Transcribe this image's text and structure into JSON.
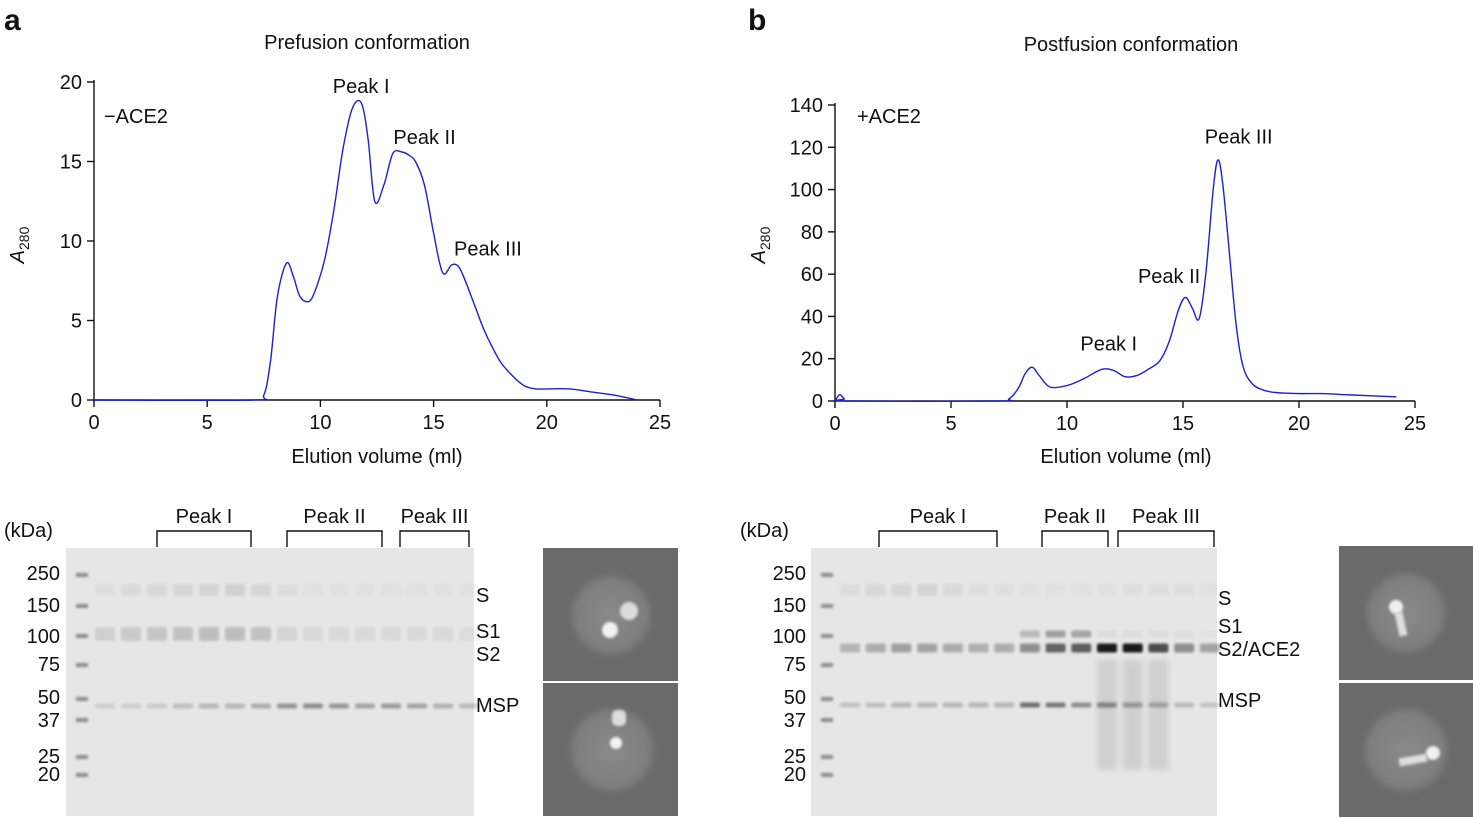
{
  "panels": [
    {
      "letter": "a",
      "title": "Prefusion conformation",
      "condition": "−ACE2",
      "gel_lanes": 15,
      "gel_markers": [
        {
          "label": "S"
        },
        {
          "label": "S1"
        },
        {
          "label": "S2"
        },
        {
          "label": "MSP"
        }
      ],
      "gel_peaks": [
        "Peak I",
        "Peak II",
        "Peak III"
      ]
    },
    {
      "letter": "b",
      "title": "Postfusion conformation",
      "condition": "+ACE2",
      "gel_lanes": 15,
      "gel_markers": [
        {
          "label": "S"
        },
        {
          "label": "S1"
        },
        {
          "label": "S2/ACE2"
        },
        {
          "label": "MSP"
        }
      ],
      "gel_peaks": [
        "Peak I",
        "Peak II",
        "Peak III"
      ]
    }
  ],
  "gel_kda_unit": "(kDa)",
  "gel_kda_ladder": [
    "250",
    "150",
    "100",
    "75",
    "50",
    "37",
    "25",
    "20"
  ],
  "colors": {
    "trace": "#1f1fd0",
    "gel_bg": "#e6e6e6",
    "em_bg": "#6a6a6a"
  },
  "chart_data": [
    {
      "type": "line",
      "title": "Prefusion conformation",
      "xlabel": "Elution volume (ml)",
      "ylabel": "A280",
      "ylabel_main": "A",
      "ylabel_sub": "280",
      "xlim": [
        0,
        25
      ],
      "ylim": [
        0,
        20
      ],
      "xticks": [
        0,
        5,
        10,
        15,
        20,
        25
      ],
      "yticks": [
        0,
        5,
        10,
        15,
        20
      ],
      "annotations": [
        {
          "text": "Peak I",
          "x": 11.8,
          "y": 18.8
        },
        {
          "text": "Peak II",
          "x": 14.6,
          "y": 15.6
        },
        {
          "text": "Peak III",
          "x": 17.4,
          "y": 8.6
        }
      ],
      "series": [
        {
          "x": [
            0,
            7.0,
            7.5,
            7.8,
            8.1,
            8.5,
            8.8,
            9.1,
            9.5,
            9.8,
            10.2,
            10.6,
            11.0,
            11.4,
            11.8,
            12.1,
            12.4,
            12.8,
            13.2,
            13.6,
            13.9,
            14.2,
            14.6,
            15.0,
            15.4,
            15.8,
            16.1,
            16.4,
            16.8,
            17.2,
            17.6,
            18.0,
            18.5,
            19.0,
            19.5,
            20.0,
            21.0,
            22.0,
            23.0,
            24.0
          ],
          "y": [
            0,
            0,
            0.3,
            2.5,
            6.5,
            8.6,
            7.8,
            6.5,
            6.2,
            7.0,
            8.9,
            12.0,
            15.8,
            18.3,
            18.7,
            16.5,
            12.5,
            13.5,
            15.5,
            15.6,
            15.4,
            15.0,
            13.5,
            10.5,
            8.0,
            8.5,
            8.4,
            7.5,
            6.0,
            4.5,
            3.3,
            2.3,
            1.5,
            0.9,
            0.7,
            0.7,
            0.7,
            0.5,
            0.3,
            0
          ]
        }
      ]
    },
    {
      "type": "line",
      "title": "Postfusion conformation",
      "xlabel": "Elution volume (ml)",
      "ylabel": "A280",
      "ylabel_main": "A",
      "ylabel_sub": "280",
      "xlim": [
        0,
        25
      ],
      "ylim": [
        0,
        140
      ],
      "xticks": [
        0,
        5,
        10,
        15,
        20,
        25
      ],
      "yticks": [
        0,
        20,
        40,
        60,
        80,
        100,
        120,
        140
      ],
      "annotations": [
        {
          "text": "Peak I",
          "x": 11.8,
          "y": 20
        },
        {
          "text": "Peak II",
          "x": 14.4,
          "y": 52
        },
        {
          "text": "Peak III",
          "x": 17.4,
          "y": 118
        }
      ],
      "series": [
        {
          "x": [
            0,
            0.2,
            0.4,
            0.6,
            7.0,
            7.5,
            7.9,
            8.2,
            8.5,
            8.8,
            9.2,
            9.6,
            10.2,
            10.8,
            11.5,
            12.0,
            12.5,
            13.0,
            13.5,
            14.0,
            14.4,
            14.8,
            15.1,
            15.4,
            15.7,
            16.0,
            16.3,
            16.5,
            16.7,
            17.0,
            17.3,
            17.6,
            18.0,
            18.5,
            19.0,
            19.5,
            20.0,
            21.0,
            22.0,
            23.0,
            24.2
          ],
          "y": [
            0,
            3,
            1,
            0,
            0,
            1,
            6,
            13,
            16,
            12,
            7,
            6.5,
            8,
            11,
            15,
            14.5,
            11.5,
            12,
            15,
            19,
            28,
            43,
            49,
            44,
            39,
            62,
            100,
            114,
            104,
            70,
            35,
            16,
            8,
            5,
            4,
            3.7,
            3.5,
            3.5,
            3,
            2.5,
            2
          ]
        }
      ]
    }
  ]
}
